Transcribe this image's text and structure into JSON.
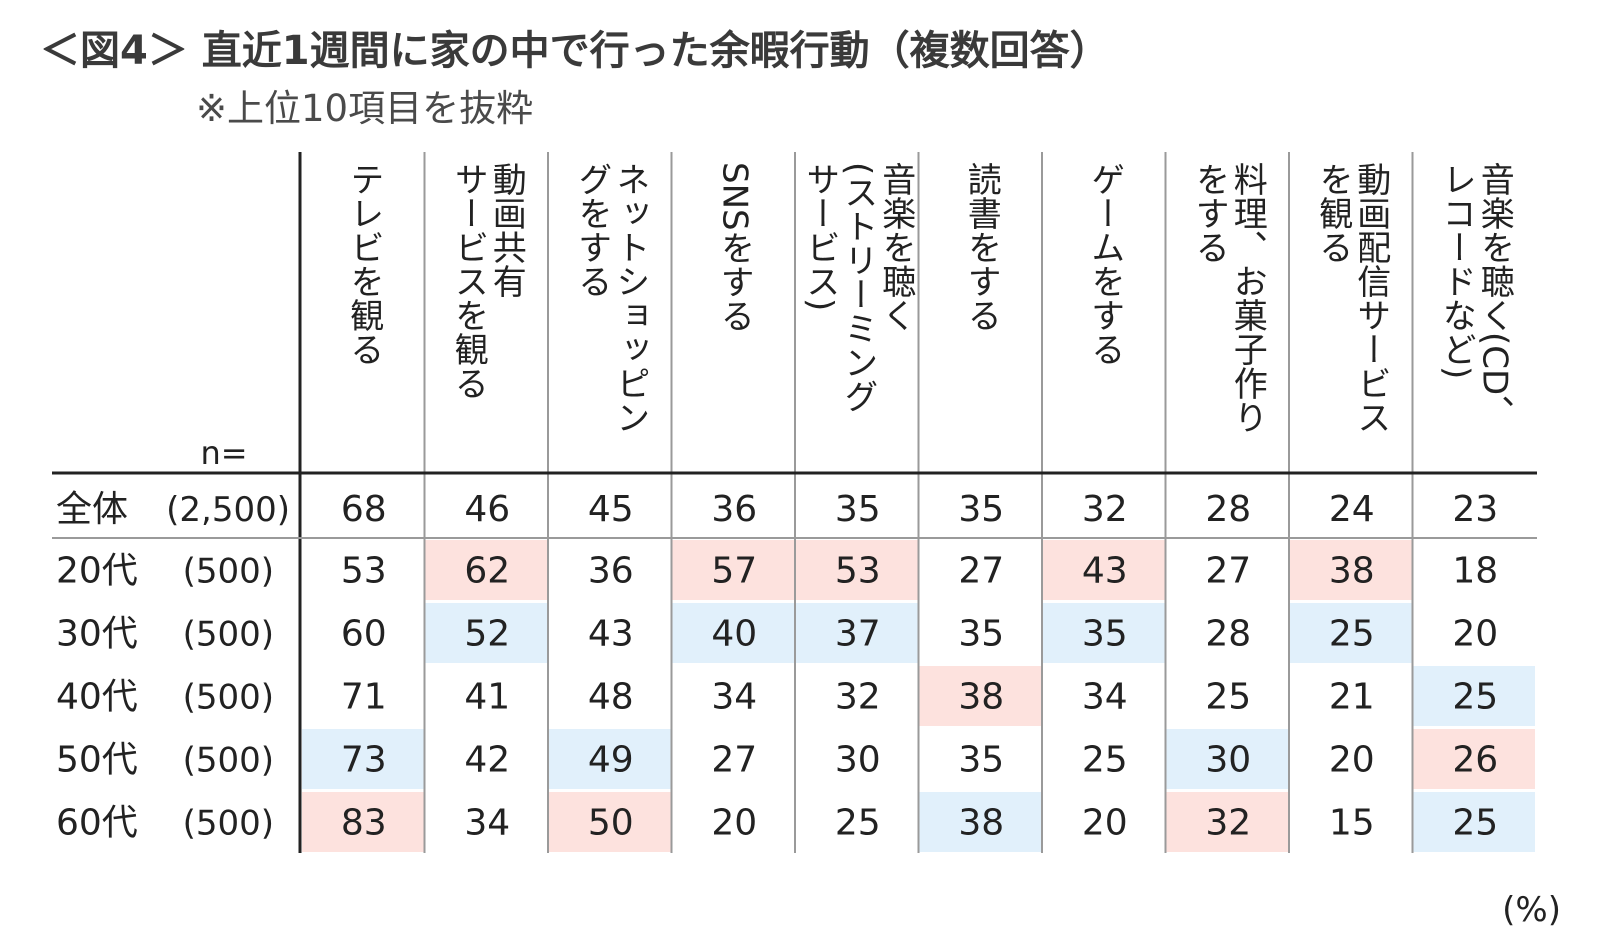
{
  "title": "＜図4＞ 直近1週間に家の中で行った余暇行動（複数回答）",
  "subtitle": "※上位10項目を抜粋",
  "unit_label": "(%)",
  "n_label": "n=",
  "colors": {
    "high": "#fde2de",
    "low": "#e1f0fb",
    "text": "#222222",
    "rule": "#222222",
    "grid": "#9a9a9a"
  },
  "chart_data": {
    "type": "table",
    "columns": [
      "テレビを観る",
      "動画共有サービスを観る",
      "ネットショッピングをする",
      "SNSをする",
      "音楽を聴く(ストリーミングサービス)",
      "読書をする",
      "ゲームをする",
      "料理、お菓子作りをする",
      "動画配信サービスを観る",
      "音楽を聴く(CD、レコードなど)"
    ],
    "column_lines": [
      [
        "テレビを観る"
      ],
      [
        "動画共有",
        "サービスを観る"
      ],
      [
        "ネットショッピン",
        "グをする"
      ],
      [
        "SNSをする"
      ],
      [
        "音楽を聴く",
        "(ストリーミング",
        "サービス)"
      ],
      [
        "読書をする"
      ],
      [
        "ゲームをする"
      ],
      [
        "料理、お菓子作り",
        "をする"
      ],
      [
        "動画配信サービス",
        "を観る"
      ],
      [
        "音楽を聴く(CD、",
        "レコードなど)"
      ]
    ],
    "rows": [
      {
        "label": "全体",
        "n": "(2,500)",
        "values": [
          68,
          46,
          45,
          36,
          35,
          35,
          32,
          28,
          24,
          23
        ],
        "highlight": [
          "",
          "",
          "",
          "",
          "",
          "",
          "",
          "",
          "",
          ""
        ]
      },
      {
        "label": "20代",
        "n": "(500)",
        "values": [
          53,
          62,
          36,
          57,
          53,
          27,
          43,
          27,
          38,
          18
        ],
        "highlight": [
          "",
          "high",
          "",
          "high",
          "high",
          "",
          "high",
          "",
          "high",
          ""
        ]
      },
      {
        "label": "30代",
        "n": "(500)",
        "values": [
          60,
          52,
          43,
          40,
          37,
          35,
          35,
          28,
          25,
          20
        ],
        "highlight": [
          "",
          "low",
          "",
          "low",
          "low",
          "",
          "low",
          "",
          "low",
          ""
        ]
      },
      {
        "label": "40代",
        "n": "(500)",
        "values": [
          71,
          41,
          48,
          34,
          32,
          38,
          34,
          25,
          21,
          25
        ],
        "highlight": [
          "",
          "",
          "",
          "",
          "",
          "high",
          "",
          "",
          "",
          "low"
        ]
      },
      {
        "label": "50代",
        "n": "(500)",
        "values": [
          73,
          42,
          49,
          27,
          30,
          35,
          25,
          30,
          20,
          26
        ],
        "highlight": [
          "low",
          "",
          "low",
          "",
          "",
          "",
          "",
          "low",
          "",
          "high"
        ]
      },
      {
        "label": "60代",
        "n": "(500)",
        "values": [
          83,
          34,
          50,
          20,
          25,
          38,
          20,
          32,
          15,
          25
        ],
        "highlight": [
          "high",
          "",
          "high",
          "",
          "",
          "low",
          "",
          "high",
          "",
          "low"
        ]
      }
    ]
  }
}
